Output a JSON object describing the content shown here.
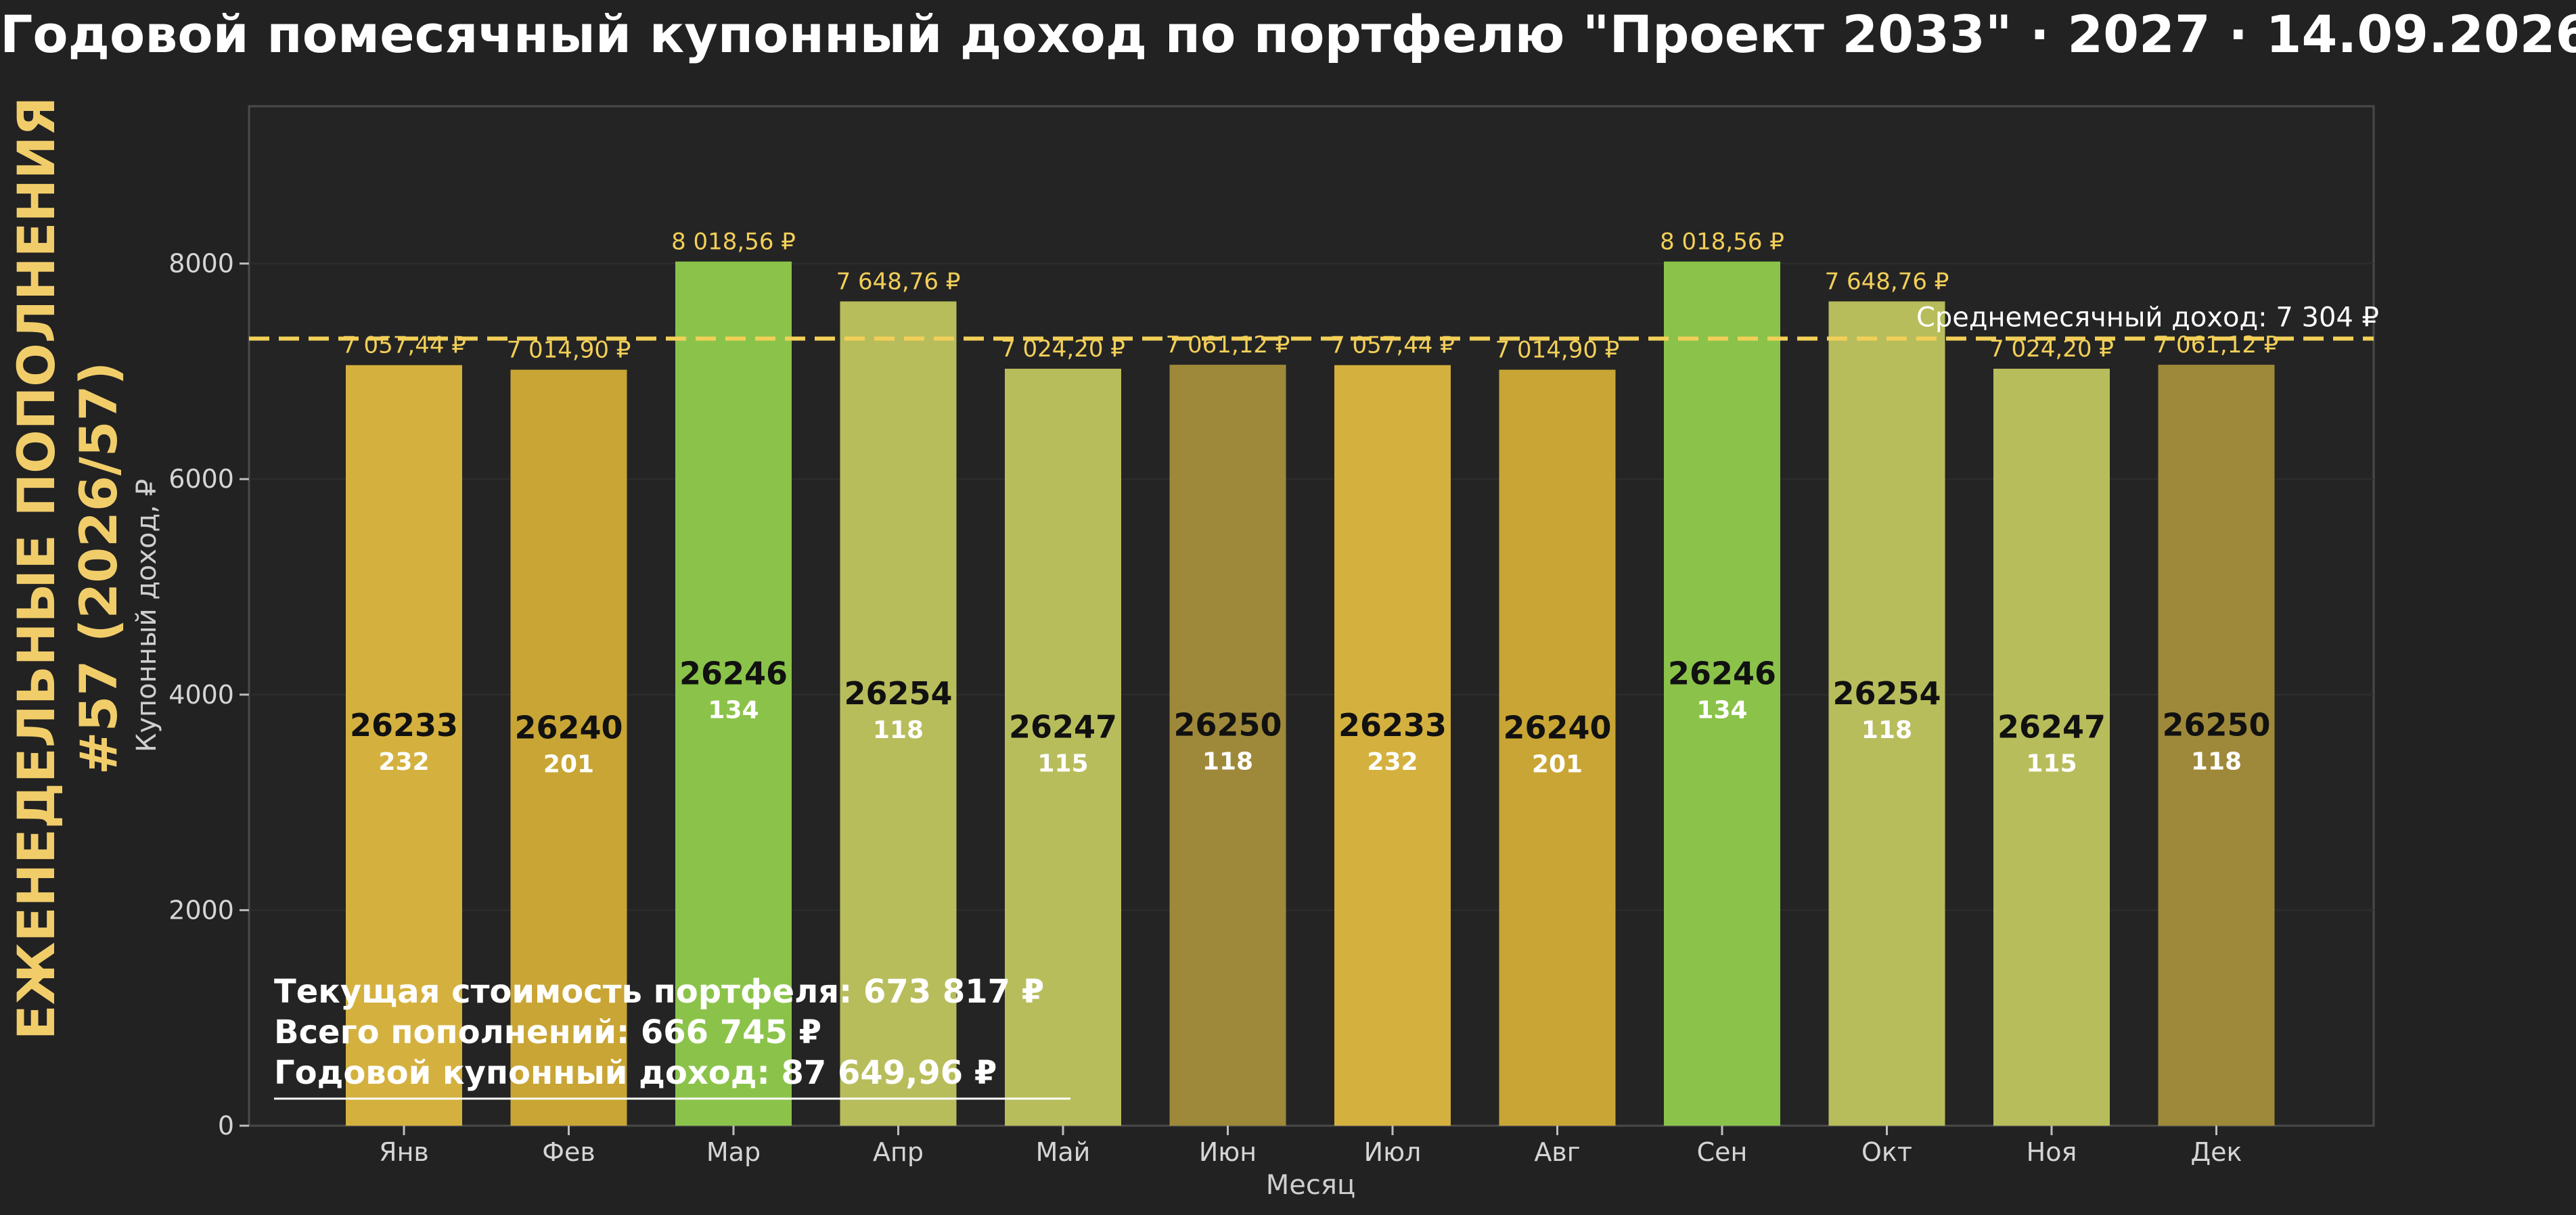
{
  "title": "Годовой помесячный купонный доход по портфелю \"Проект 2033\" · 2027 · 14.09.2026",
  "side_title": {
    "line1": "ЕЖЕНЕДЕЛЬНЫЕ ПОПОЛНЕНИЯ",
    "line2": "#57 (2026/57)"
  },
  "colors": {
    "background": "#222222",
    "plot_bg": "#242424",
    "accent": "#f2cf58",
    "side_title": "#f1cd6a"
  },
  "chart_data": {
    "type": "bar",
    "xlabel": "Месяц",
    "ylabel": "Купонный доход, ₽",
    "ylim": [
      0,
      9460
    ],
    "yticks": [
      0,
      2000,
      4000,
      6000,
      8000
    ],
    "grid": true,
    "categories": [
      "Янв",
      "Фев",
      "Мар",
      "Апр",
      "Май",
      "Июн",
      "Июл",
      "Авг",
      "Сен",
      "Окт",
      "Ноя",
      "Дек"
    ],
    "values": [
      7057.44,
      7014.9,
      8018.56,
      7648.76,
      7024.2,
      7061.12,
      7057.44,
      7014.9,
      8018.56,
      7648.76,
      7024.2,
      7061.12
    ],
    "value_labels": [
      "7 057,44 ₽",
      "7 014,90 ₽",
      "8 018,56 ₽",
      "7 648,76 ₽",
      "7 024,20 ₽",
      "7 061,12 ₽",
      "7 057,44 ₽",
      "7 014,90 ₽",
      "8 018,56 ₽",
      "7 648,76 ₽",
      "7 024,20 ₽",
      "7 061,12 ₽"
    ],
    "bond_codes": [
      "26233",
      "26240",
      "26246",
      "26254",
      "26247",
      "26250",
      "26233",
      "26240",
      "26246",
      "26254",
      "26247",
      "26250"
    ],
    "bond_counts": [
      "232",
      "201",
      "134",
      "118",
      "115",
      "118",
      "232",
      "201",
      "134",
      "118",
      "115",
      "118"
    ],
    "bar_colors": [
      "#d4b13f",
      "#c8a534",
      "#8bc34a",
      "#b8bd5c",
      "#b8bd5c",
      "#9e893a",
      "#d4b13f",
      "#c8a534",
      "#8bc34a",
      "#b8bd5c",
      "#b8bd5c",
      "#9e893a"
    ],
    "average": 7304,
    "average_label": "Среднемесячный доход: 7 304 ₽"
  },
  "summary": {
    "portfolio_value": "Текущая стоимость портфеля: 673 817 ₽",
    "total_deposits": "Всего пополнений: 666 745 ₽",
    "annual_income": "Годовой купонный доход: 87 649,96 ₽"
  }
}
